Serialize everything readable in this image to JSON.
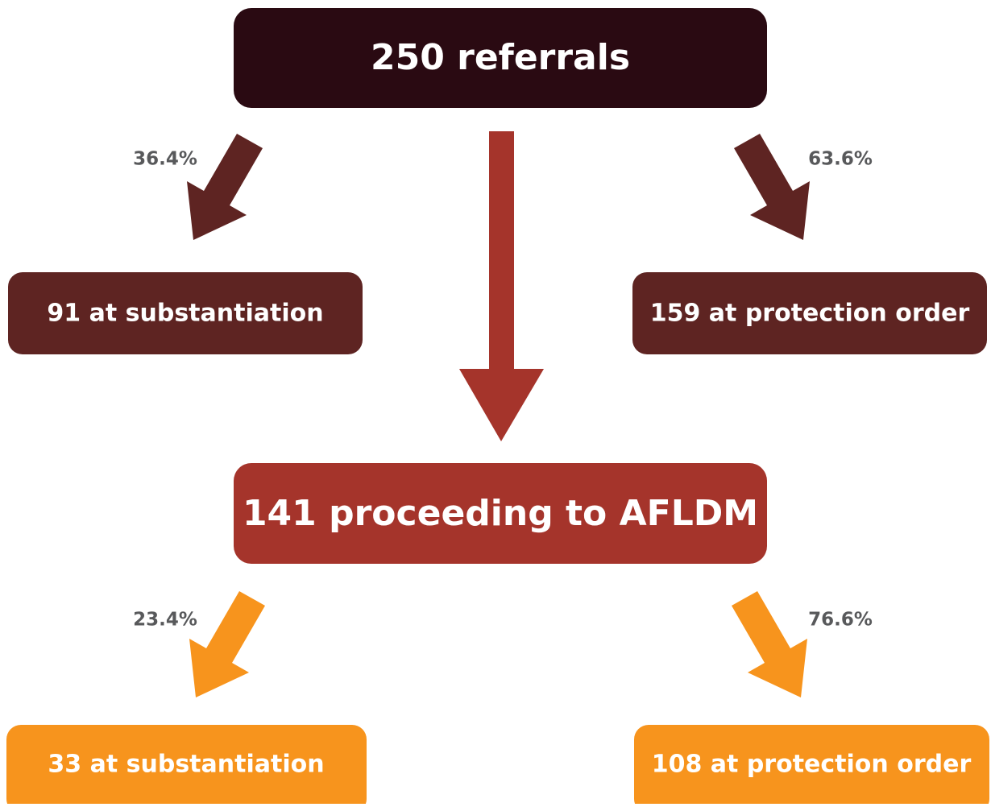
{
  "nodes": [
    {
      "label": "250 referrals"
    },
    {
      "label": "91 at substantiation"
    },
    {
      "label": "159 at protection order"
    },
    {
      "label": "141 proceeding to AFLDM"
    },
    {
      "label": "33 at substantiation"
    },
    {
      "label": "108 at protection order"
    }
  ],
  "edges": [
    {
      "label": "36.4%"
    },
    {
      "label": "63.6%"
    },
    {
      "label": "23.4%"
    },
    {
      "label": "76.6%"
    }
  ]
}
